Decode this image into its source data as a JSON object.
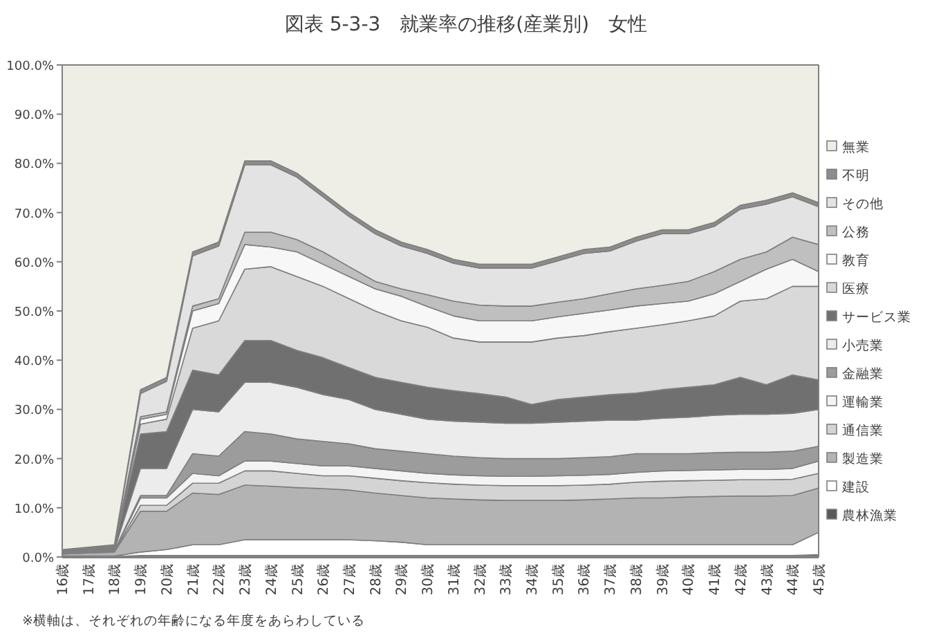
{
  "chart_data": {
    "type": "area",
    "stacked": true,
    "title": "図表 5-3-3　就業率の推移(産業別)　女性",
    "categories": [
      "16歳",
      "17歳",
      "18歳",
      "19歳",
      "20歳",
      "21歳",
      "22歳",
      "23歳",
      "24歳",
      "25歳",
      "26歳",
      "27歳",
      "28歳",
      "29歳",
      "30歳",
      "31歳",
      "32歳",
      "33歳",
      "34歳",
      "35歳",
      "36歳",
      "37歳",
      "38歳",
      "39歳",
      "40歳",
      "41歳",
      "42歳",
      "43歳",
      "44歳",
      "45歳"
    ],
    "ylim": [
      0,
      100
    ],
    "yticks": [
      {
        "value": 0,
        "label": "0.0%"
      },
      {
        "value": 10,
        "label": "10.0%"
      },
      {
        "value": 20,
        "label": "20.0%"
      },
      {
        "value": 30,
        "label": "30.0%"
      },
      {
        "value": 40,
        "label": "40.0%"
      },
      {
        "value": 50,
        "label": "50.0%"
      },
      {
        "value": 60,
        "label": "60.0%"
      },
      {
        "value": 70,
        "label": "70.0%"
      },
      {
        "value": 80,
        "label": "80.0%"
      },
      {
        "value": 90,
        "label": "90.0%"
      },
      {
        "value": 100,
        "label": "100.0%"
      }
    ],
    "legend": "right",
    "annotations": [
      "※横軸は、それぞれの年齢になる年度をあらわしている"
    ],
    "series": [
      {
        "name": "農林漁業",
        "color": "#595959",
        "values": [
          0.1,
          0.1,
          0.1,
          0.3,
          0.3,
          0.3,
          0.3,
          0.3,
          0.3,
          0.3,
          0.3,
          0.3,
          0.3,
          0.3,
          0.3,
          0.3,
          0.3,
          0.3,
          0.3,
          0.3,
          0.3,
          0.3,
          0.3,
          0.3,
          0.3,
          0.3,
          0.3,
          0.3,
          0.3,
          0.5
        ]
      },
      {
        "name": "建設",
        "color": "#ffffff",
        "values": [
          0.1,
          0.1,
          0.1,
          0.7,
          1.2,
          2.2,
          2.2,
          3.2,
          3.2,
          3.2,
          3.2,
          3.2,
          3.0,
          2.7,
          2.2,
          2.2,
          2.2,
          2.2,
          2.2,
          2.2,
          2.2,
          2.2,
          2.2,
          2.2,
          2.2,
          2.2,
          2.2,
          2.2,
          2.2,
          4.5
        ]
      },
      {
        "name": "製造業",
        "color": "#b3b3b3",
        "values": [
          0.4,
          0.6,
          0.8,
          8.3,
          7.8,
          10.5,
          10.2,
          11.1,
          10.9,
          10.6,
          10.4,
          10.1,
          9.7,
          9.5,
          9.5,
          9.3,
          9.1,
          9.0,
          9.0,
          9.0,
          9.1,
          9.3,
          9.5,
          9.5,
          9.7,
          9.8,
          9.9,
          9.9,
          10.0,
          9.0
        ]
      },
      {
        "name": "通信業",
        "color": "#d4d4d4",
        "values": [
          0.1,
          0.1,
          0.1,
          1.2,
          1.2,
          2.0,
          2.3,
          2.9,
          3.1,
          2.9,
          2.6,
          2.9,
          3.0,
          3.0,
          3.1,
          3.0,
          3.0,
          3.0,
          3.0,
          3.0,
          3.0,
          3.0,
          3.2,
          3.4,
          3.3,
          3.3,
          3.3,
          3.3,
          3.3,
          3.0
        ]
      },
      {
        "name": "運輸業",
        "color": "#f4f4f4",
        "values": [
          0.1,
          0.1,
          0.1,
          1.5,
          1.5,
          2.0,
          1.5,
          2.0,
          2.0,
          2.0,
          2.0,
          2.0,
          2.0,
          2.0,
          1.9,
          1.9,
          1.9,
          1.9,
          1.9,
          2.0,
          2.0,
          2.0,
          2.0,
          2.1,
          2.1,
          2.1,
          2.1,
          2.1,
          2.2,
          2.5
        ]
      },
      {
        "name": "金融業",
        "color": "#9c9c9c",
        "values": [
          0.1,
          0.1,
          0.1,
          0.5,
          0.5,
          4.0,
          4.0,
          6.0,
          5.5,
          5.0,
          5.0,
          4.5,
          4.0,
          4.0,
          4.0,
          3.8,
          3.7,
          3.6,
          3.6,
          3.5,
          3.6,
          3.6,
          3.8,
          3.5,
          3.4,
          3.5,
          3.5,
          3.5,
          3.5,
          3.0
        ]
      },
      {
        "name": "小売業",
        "color": "#ececec",
        "values": [
          0.1,
          0.2,
          0.2,
          5.5,
          5.5,
          9.0,
          9.0,
          10.0,
          10.5,
          10.5,
          9.5,
          9.0,
          8.0,
          7.5,
          7.0,
          7.1,
          7.2,
          7.2,
          7.2,
          7.4,
          7.4,
          7.4,
          6.8,
          7.2,
          7.4,
          7.6,
          7.7,
          7.7,
          7.7,
          7.5
        ]
      },
      {
        "name": "サービス業",
        "color": "#707070",
        "values": [
          0.1,
          0.2,
          0.3,
          7.0,
          7.5,
          8.0,
          7.5,
          8.5,
          8.5,
          7.5,
          7.5,
          6.5,
          6.5,
          6.5,
          6.5,
          6.2,
          5.8,
          5.3,
          3.8,
          4.6,
          4.9,
          5.2,
          5.5,
          5.8,
          6.1,
          6.2,
          7.5,
          6.0,
          7.8,
          6.0
        ]
      },
      {
        "name": "医療",
        "color": "#d9d9d9",
        "values": [
          0.1,
          0.1,
          0.2,
          2.0,
          2.5,
          8.5,
          11.0,
          14.5,
          15.0,
          15.0,
          14.5,
          14.0,
          13.5,
          12.5,
          12.2,
          10.7,
          10.5,
          11.2,
          12.7,
          12.5,
          12.5,
          12.8,
          13.2,
          13.2,
          13.5,
          14.0,
          15.5,
          17.5,
          18.0,
          19.0
        ]
      },
      {
        "name": "教育",
        "color": "#f7f7f7",
        "values": [
          0.1,
          0.1,
          0.1,
          1.0,
          1.0,
          3.5,
          3.5,
          5.0,
          4.0,
          5.0,
          4.5,
          4.5,
          4.5,
          5.0,
          4.2,
          4.5,
          4.3,
          4.3,
          4.3,
          4.3,
          4.5,
          4.4,
          4.5,
          4.3,
          4.0,
          4.5,
          4.0,
          6.0,
          5.5,
          3.0
        ]
      },
      {
        "name": "公務",
        "color": "#bfbfbf",
        "values": [
          0.0,
          0.0,
          0.1,
          0.5,
          0.5,
          1.0,
          1.0,
          2.5,
          3.0,
          2.5,
          2.5,
          2.0,
          1.5,
          1.5,
          2.4,
          3.0,
          3.2,
          3.0,
          3.0,
          3.0,
          3.0,
          3.3,
          3.5,
          3.7,
          4.0,
          4.5,
          4.5,
          3.5,
          4.5,
          5.5
        ]
      },
      {
        "name": "その他",
        "color": "#e3e3e3",
        "values": [
          0.1,
          0.2,
          0.2,
          4.7,
          6.2,
          10.2,
          10.7,
          13.7,
          13.7,
          12.7,
          11.2,
          10.2,
          9.7,
          8.7,
          8.4,
          7.7,
          7.5,
          7.7,
          7.7,
          8.4,
          9.2,
          8.7,
          9.7,
          10.5,
          9.7,
          9.2,
          10.2,
          9.7,
          8.2,
          7.7
        ]
      },
      {
        "name": "不明",
        "color": "#8c8c8c",
        "values": [
          0.1,
          0.1,
          0.1,
          0.8,
          0.8,
          0.8,
          0.8,
          0.8,
          0.8,
          0.8,
          0.8,
          0.8,
          0.8,
          0.8,
          0.8,
          0.8,
          0.8,
          0.8,
          0.8,
          0.8,
          0.8,
          0.8,
          0.8,
          0.8,
          0.8,
          0.8,
          0.8,
          0.8,
          0.8,
          0.8
        ]
      },
      {
        "name": "無業",
        "color": "#eeede6",
        "values": [
          98.5,
          98,
          97.5,
          66,
          63.5,
          38,
          36,
          19.5,
          19.5,
          22,
          26,
          30,
          33.5,
          36,
          37.5,
          39.5,
          40.5,
          40.5,
          40.5,
          39,
          37.5,
          37,
          35,
          33.5,
          33.5,
          32,
          28.5,
          27.5,
          26,
          28
        ]
      }
    ]
  }
}
